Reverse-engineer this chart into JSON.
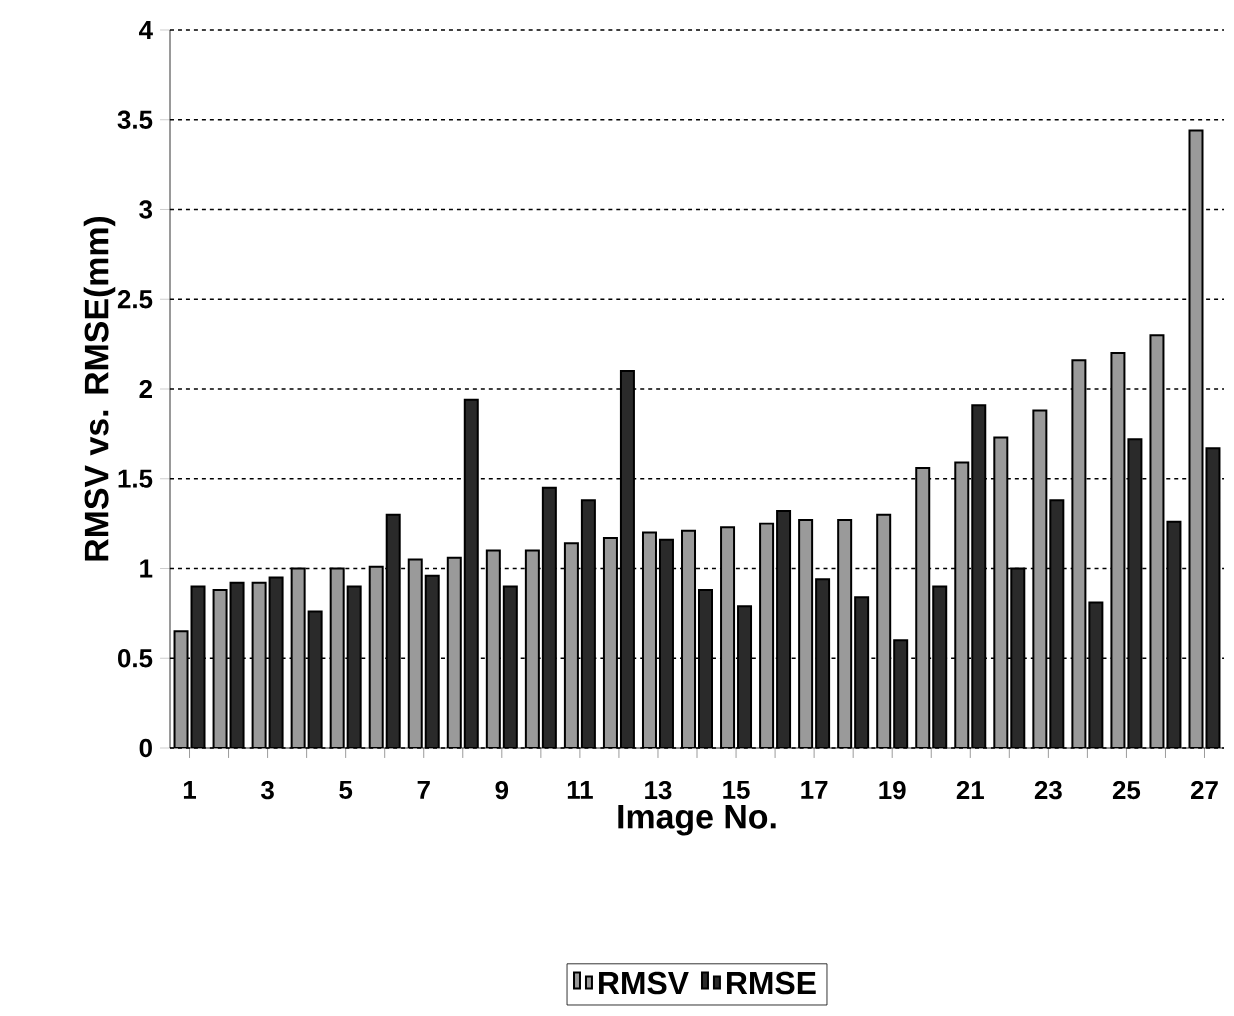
{
  "chart_data": {
    "type": "bar",
    "xlabel": "Image No.",
    "ylabel": "RMSV vs. RMSE(mm)",
    "categories": [
      "1",
      null,
      "3",
      null,
      "5",
      null,
      "7",
      null,
      "9",
      null,
      "11",
      null,
      "13",
      null,
      "15",
      null,
      "17",
      null,
      "19",
      null,
      "21",
      null,
      "23",
      null,
      "25",
      null,
      "27"
    ],
    "series": [
      {
        "name": "RMSV",
        "color": "#9a9a9a",
        "values": [
          0.65,
          0.88,
          0.92,
          1.0,
          1.0,
          1.01,
          1.05,
          1.06,
          1.1,
          1.1,
          1.14,
          1.17,
          1.2,
          1.21,
          1.23,
          1.25,
          1.27,
          1.27,
          1.3,
          1.56,
          1.59,
          1.73,
          1.88,
          2.16,
          2.2,
          2.3,
          3.44
        ]
      },
      {
        "name": "RMSE",
        "color": "#2a2a2a",
        "values": [
          0.9,
          0.92,
          0.95,
          0.76,
          0.9,
          1.3,
          0.96,
          1.94,
          0.9,
          1.45,
          1.38,
          2.1,
          1.16,
          0.88,
          0.79,
          1.32,
          0.94,
          0.84,
          0.6,
          0.9,
          1.91,
          1.0,
          1.38,
          0.81,
          1.72,
          1.26,
          1.67
        ]
      }
    ],
    "ylim": [
      0,
      4
    ],
    "yticks": [
      0,
      0.5,
      1,
      1.5,
      2,
      2.5,
      3,
      3.5,
      4
    ],
    "grid": "y",
    "legend": "bottom"
  }
}
